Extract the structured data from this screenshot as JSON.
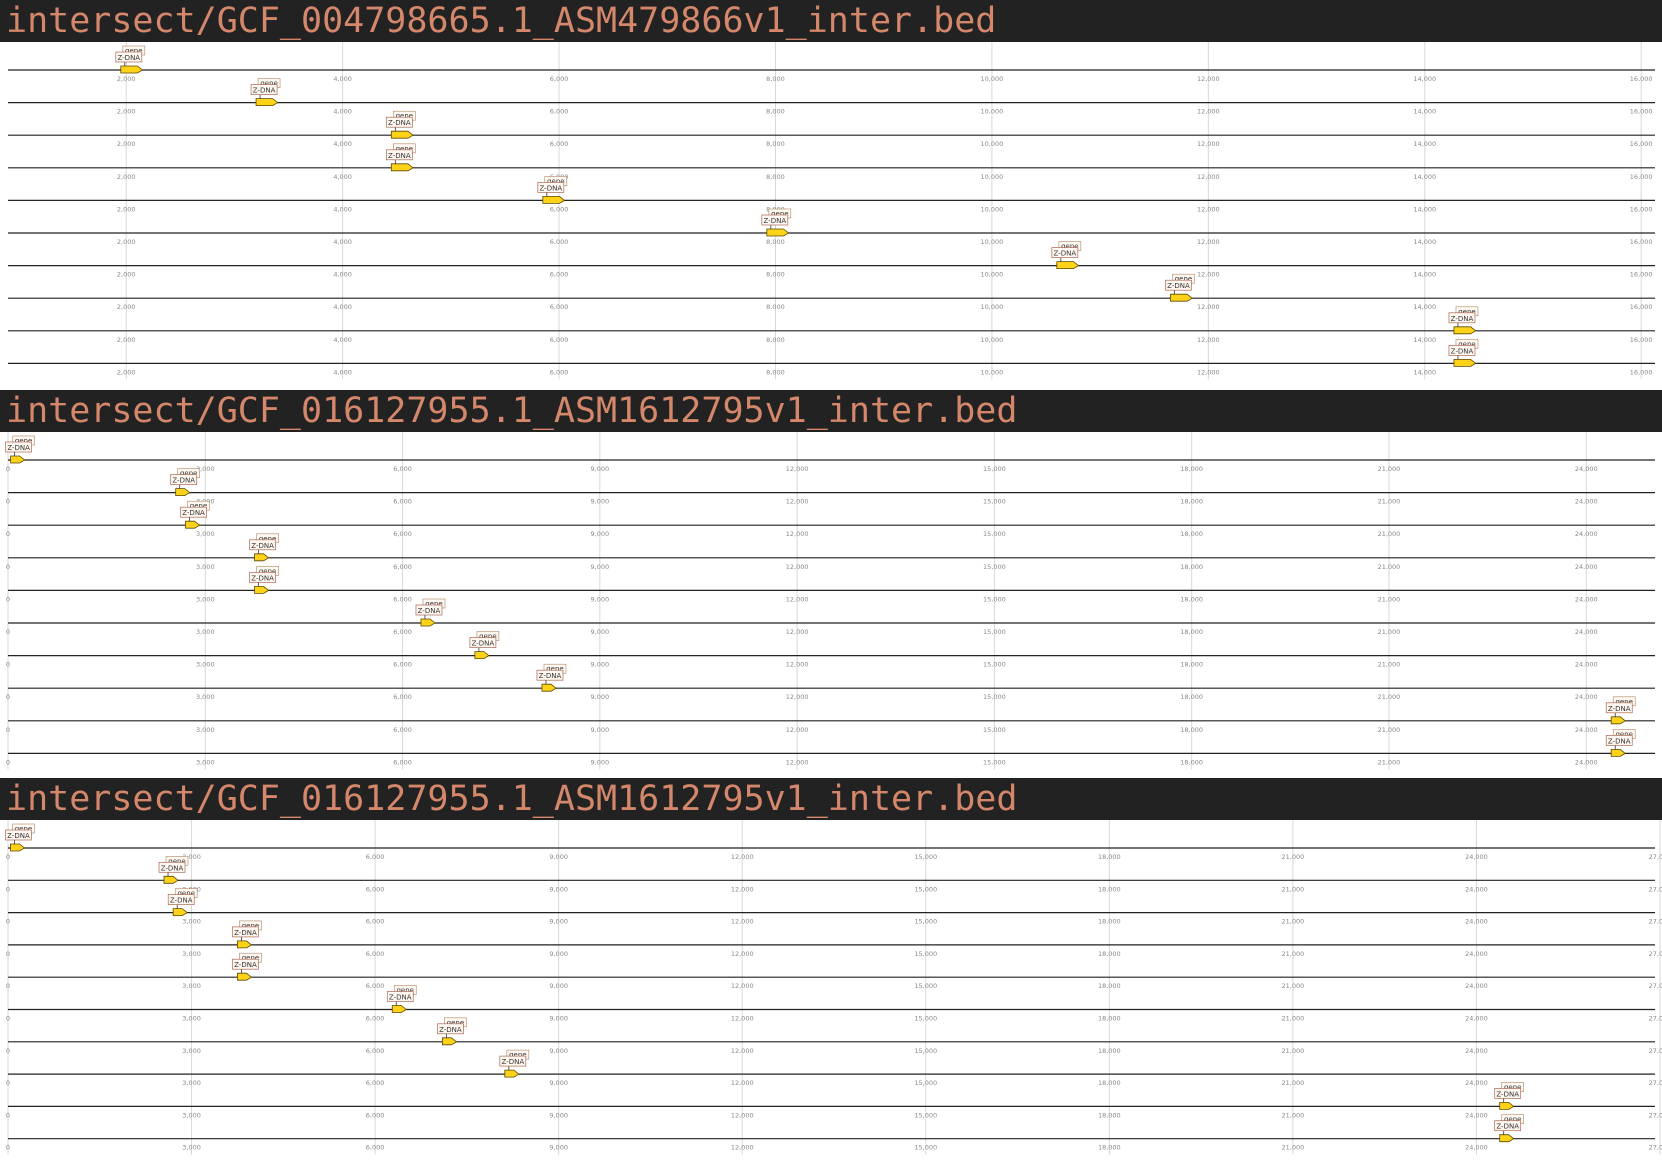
{
  "panels": [
    {
      "title": "intersect/GCF_004798665.1_ASM479866v1_inter.bed",
      "axis": {
        "min": 1000,
        "max": 16100,
        "ticks": [
          2000,
          4000,
          6000,
          8000,
          10000,
          12000,
          14000,
          16000
        ]
      },
      "tick_labels": [
        "2,000",
        "4,000",
        "6,000",
        "8,000",
        "10,000",
        "12,000",
        "14,000",
        "16,000"
      ],
      "tracks": [
        {
          "feature_start": 1950,
          "feature_end": 2150,
          "labels": [
            "gene",
            "Z-DNA"
          ]
        },
        {
          "feature_start": 3200,
          "feature_end": 3400,
          "labels": [
            "gene",
            "Z-DNA"
          ]
        },
        {
          "feature_start": 4450,
          "feature_end": 4650,
          "labels": [
            "gene",
            "Z-DNA"
          ]
        },
        {
          "feature_start": 4450,
          "feature_end": 4650,
          "labels": [
            "gene",
            "Z-DNA"
          ]
        },
        {
          "feature_start": 5850,
          "feature_end": 6050,
          "labels": [
            "gene",
            "Z-DNA"
          ]
        },
        {
          "feature_start": 7920,
          "feature_end": 8120,
          "labels": [
            "gene",
            "Z-DNA"
          ]
        },
        {
          "feature_start": 10600,
          "feature_end": 10800,
          "labels": [
            "gene",
            "Z-DNA"
          ]
        },
        {
          "feature_start": 11650,
          "feature_end": 11850,
          "labels": [
            "gene",
            "Z-DNA"
          ]
        },
        {
          "feature_start": 14270,
          "feature_end": 14470,
          "labels": [
            "gene",
            "Z-DNA"
          ]
        },
        {
          "feature_start": 14270,
          "feature_end": 14470,
          "labels": [
            "gene",
            "Z-DNA"
          ]
        }
      ]
    },
    {
      "title": "intersect/GCF_016127955.1_ASM1612795v1_inter.bed",
      "axis": {
        "min": 0,
        "max": 25000,
        "ticks": [
          0,
          3000,
          6000,
          9000,
          12000,
          15000,
          18000,
          21000,
          24000
        ]
      },
      "tick_labels": [
        "0",
        "3,000",
        "6,000",
        "9,000",
        "12,000",
        "15,000",
        "18,000",
        "21,000",
        "24,000"
      ],
      "tracks": [
        {
          "feature_start": 40,
          "feature_end": 200,
          "labels": [
            "gene",
            "Z-DNA"
          ]
        },
        {
          "feature_start": 2550,
          "feature_end": 2750,
          "labels": [
            "gene",
            "Z-DNA"
          ]
        },
        {
          "feature_start": 2700,
          "feature_end": 2900,
          "labels": [
            "gene",
            "Z-DNA"
          ]
        },
        {
          "feature_start": 3750,
          "feature_end": 3950,
          "labels": [
            "gene",
            "Z-DNA"
          ]
        },
        {
          "feature_start": 3750,
          "feature_end": 3950,
          "labels": [
            "gene",
            "Z-DNA"
          ]
        },
        {
          "feature_start": 6280,
          "feature_end": 6480,
          "labels": [
            "gene",
            "Z-DNA"
          ]
        },
        {
          "feature_start": 7100,
          "feature_end": 7300,
          "labels": [
            "gene",
            "Z-DNA"
          ]
        },
        {
          "feature_start": 8120,
          "feature_end": 8320,
          "labels": [
            "gene",
            "Z-DNA"
          ]
        },
        {
          "feature_start": 24380,
          "feature_end": 24580,
          "labels": [
            "gene",
            "Z-DNA"
          ]
        },
        {
          "feature_start": 24380,
          "feature_end": 24580,
          "labels": [
            "gene",
            "Z-DNA"
          ]
        }
      ]
    },
    {
      "title": "intersect/GCF_016127955.1_ASM1612795v1_inter.bed",
      "axis": {
        "min": 0,
        "max": 27000,
        "ticks": [
          0,
          3000,
          6000,
          9000,
          12000,
          15000,
          18000,
          21000,
          24000,
          27000
        ]
      },
      "tick_labels": [
        "0",
        "3,000",
        "6,000",
        "9,000",
        "12,000",
        "15,000",
        "18,000",
        "21,000",
        "24,000",
        "27,000"
      ],
      "tracks": [
        {
          "feature_start": 40,
          "feature_end": 200,
          "labels": [
            "gene",
            "Z-DNA"
          ]
        },
        {
          "feature_start": 2550,
          "feature_end": 2750,
          "labels": [
            "gene",
            "Z-DNA"
          ]
        },
        {
          "feature_start": 2700,
          "feature_end": 2900,
          "labels": [
            "gene",
            "Z-DNA"
          ]
        },
        {
          "feature_start": 3750,
          "feature_end": 3950,
          "labels": [
            "gene",
            "Z-DNA"
          ]
        },
        {
          "feature_start": 3750,
          "feature_end": 3950,
          "labels": [
            "gene",
            "Z-DNA"
          ]
        },
        {
          "feature_start": 6280,
          "feature_end": 6480,
          "labels": [
            "gene",
            "Z-DNA"
          ]
        },
        {
          "feature_start": 7100,
          "feature_end": 7300,
          "labels": [
            "gene",
            "Z-DNA"
          ]
        },
        {
          "feature_start": 8120,
          "feature_end": 8320,
          "labels": [
            "gene",
            "Z-DNA"
          ]
        },
        {
          "feature_start": 24380,
          "feature_end": 24580,
          "labels": [
            "gene",
            "Z-DNA"
          ]
        },
        {
          "feature_start": 24380,
          "feature_end": 24580,
          "labels": [
            "gene",
            "Z-DNA"
          ]
        }
      ]
    }
  ],
  "colors": {
    "header_bg": "#222222",
    "header_text": "#d4876a",
    "feature_fill": "#ffd21a",
    "feature_stroke": "#5a4a00",
    "label_bg": "#fff8f0"
  }
}
